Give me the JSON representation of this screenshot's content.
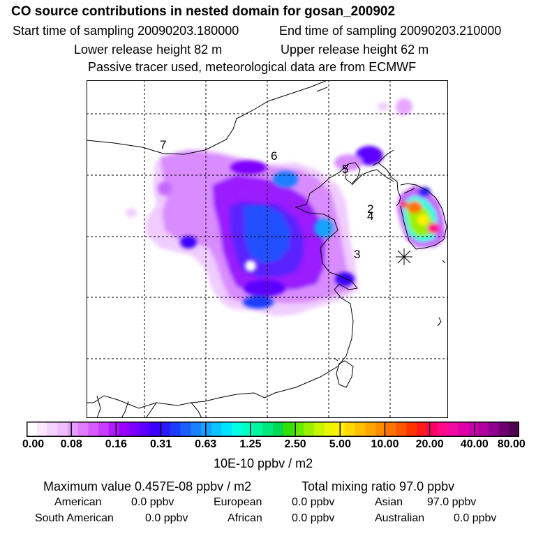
{
  "header": {
    "title": "CO  source contributions in nested domain for gosan_200902",
    "start": "Start time of sampling 20090203.180000",
    "end": "End time of sampling 20090203.210000",
    "lower": "Lower release height   82 m",
    "upper": "Upper release height   62 m",
    "note": "Passive tracer used, meteorological data are from ECMWF"
  },
  "map": {
    "markers": [
      "7",
      "6",
      "5",
      "2",
      "4",
      "3"
    ],
    "receptor": "✳"
  },
  "colorbar": {
    "ticks": [
      "0.00",
      "0.08",
      "0.16",
      "0.31",
      "0.63",
      "1.25",
      "2.50",
      "5.00",
      "10.00",
      "20.00",
      "40.00",
      "80.00"
    ],
    "unit": "10E-10 ppbv / m2",
    "colors": [
      "#ffffff",
      "#fbe8ff",
      "#f5d2ff",
      "#efbcff",
      "#e79dff",
      "#df7cff",
      "#d65cff",
      "#c73dff",
      "#b11cff",
      "#9a00ff",
      "#7d00ff",
      "#5c00ff",
      "#3b00ff",
      "#2a1bff",
      "#1d3cff",
      "#1a5eff",
      "#1a80ff",
      "#14a2ff",
      "#0ac4ff",
      "#00e5ff",
      "#00ffe6",
      "#00ffc3",
      "#00f7a0",
      "#00e87c",
      "#00d955",
      "#33e000",
      "#66ea00",
      "#99f000",
      "#c8f500",
      "#eaf700",
      "#fff000",
      "#ffd800",
      "#ffbf00",
      "#ffa600",
      "#ff8c00",
      "#ff7300",
      "#ff5500",
      "#ff3300",
      "#ff1a1a",
      "#ff0066",
      "#ff0a8a",
      "#f00a9f",
      "#e000a8",
      "#c800aa",
      "#b000a0",
      "#900090",
      "#700070",
      "#500050"
    ]
  },
  "summary": {
    "max": "Maximum value  0.457E-08 ppbv / m2",
    "total": "Total mixing ratio       97.0 ppbv",
    "regions": [
      {
        "name": "American",
        "value": "0.0 ppbv"
      },
      {
        "name": "European",
        "value": "0.0 ppbv"
      },
      {
        "name": "Asian",
        "value": "97.0 ppbv"
      },
      {
        "name": "South American",
        "value": "0.0 ppbv"
      },
      {
        "name": "African",
        "value": "0.0 ppbv"
      },
      {
        "name": "Australian",
        "value": "0.0 ppbv"
      }
    ]
  }
}
